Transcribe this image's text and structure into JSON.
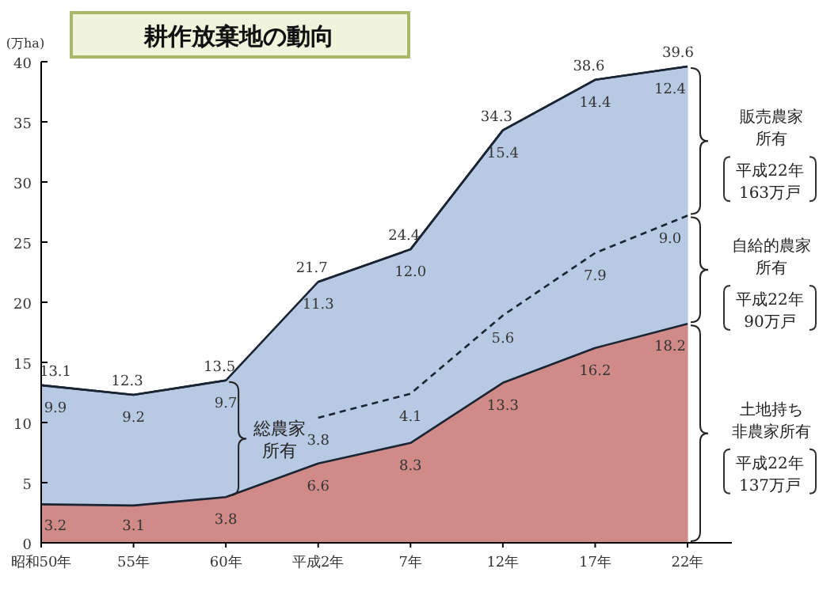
{
  "chart_data": {
    "type": "area",
    "stacked": true,
    "title": "耕作放棄地の動向",
    "ylabel": "(万ha)",
    "categories": [
      "昭和50年",
      "55年",
      "60年",
      "平成2年",
      "7年",
      "12年",
      "17年",
      "22年"
    ],
    "ylim": [
      0,
      40
    ],
    "yticks": [
      0,
      5,
      10,
      15,
      20,
      25,
      30,
      35,
      40
    ],
    "grid": false,
    "series": [
      {
        "name": "土地持ち非農家所有",
        "color": "#d08b89",
        "values": [
          3.2,
          3.1,
          3.8,
          6.6,
          8.3,
          13.3,
          16.2,
          18.2
        ],
        "value_labels": [
          "3.2",
          "3.1",
          "3.8",
          "6.6",
          "8.3",
          "13.3",
          "16.2",
          "18.2"
        ]
      },
      {
        "name": "総農家所有",
        "color": "#b8cae3",
        "values": [
          9.9,
          9.2,
          9.7,
          null,
          null,
          null,
          null,
          null
        ],
        "value_labels": [
          "9.9",
          "9.2",
          "9.7",
          null,
          null,
          null,
          null,
          null
        ]
      },
      {
        "name": "自給的農家所有",
        "color": "#b8cae3",
        "line_style": "dashed",
        "values": [
          null,
          null,
          null,
          3.8,
          4.1,
          5.6,
          7.9,
          9.0
        ],
        "value_labels": [
          null,
          null,
          null,
          "3.8",
          "4.1",
          "5.6",
          "7.9",
          "9.0"
        ]
      },
      {
        "name": "販売農家所有",
        "color": "#b8cae3",
        "values": [
          null,
          null,
          null,
          11.3,
          12.0,
          15.4,
          14.4,
          12.4
        ],
        "value_labels": [
          null,
          null,
          null,
          "11.3",
          "12.0",
          "15.4",
          "14.4",
          "12.4"
        ]
      }
    ],
    "totals": [
      "13.1",
      "12.3",
      "13.5",
      "21.7",
      "24.4",
      "34.3",
      "38.6",
      "39.6"
    ],
    "annotations": [
      "平成22年\n163万戸",
      "平成22年\n90万戸",
      "平成22年\n137万戸"
    ]
  }
}
